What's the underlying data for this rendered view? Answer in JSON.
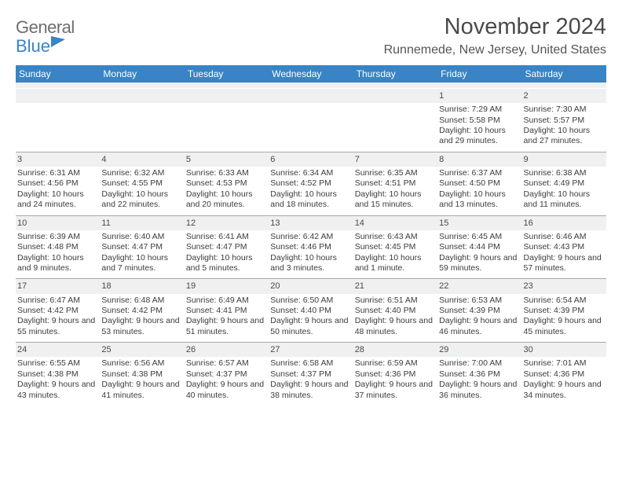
{
  "logo": {
    "line1": "General",
    "line2": "Blue"
  },
  "title": "November 2024",
  "location": "Runnemede, New Jersey, United States",
  "header_bg": "#3884c6",
  "band_bg": "#eef0f1",
  "days_of_week": [
    "Sunday",
    "Monday",
    "Tuesday",
    "Wednesday",
    "Thursday",
    "Friday",
    "Saturday"
  ],
  "weeks": [
    [
      {
        "num": "",
        "sr": "",
        "ss": "",
        "dl": ""
      },
      {
        "num": "",
        "sr": "",
        "ss": "",
        "dl": ""
      },
      {
        "num": "",
        "sr": "",
        "ss": "",
        "dl": ""
      },
      {
        "num": "",
        "sr": "",
        "ss": "",
        "dl": ""
      },
      {
        "num": "",
        "sr": "",
        "ss": "",
        "dl": ""
      },
      {
        "num": "1",
        "sr": "Sunrise: 7:29 AM",
        "ss": "Sunset: 5:58 PM",
        "dl": "Daylight: 10 hours and 29 minutes."
      },
      {
        "num": "2",
        "sr": "Sunrise: 7:30 AM",
        "ss": "Sunset: 5:57 PM",
        "dl": "Daylight: 10 hours and 27 minutes."
      }
    ],
    [
      {
        "num": "3",
        "sr": "Sunrise: 6:31 AM",
        "ss": "Sunset: 4:56 PM",
        "dl": "Daylight: 10 hours and 24 minutes."
      },
      {
        "num": "4",
        "sr": "Sunrise: 6:32 AM",
        "ss": "Sunset: 4:55 PM",
        "dl": "Daylight: 10 hours and 22 minutes."
      },
      {
        "num": "5",
        "sr": "Sunrise: 6:33 AM",
        "ss": "Sunset: 4:53 PM",
        "dl": "Daylight: 10 hours and 20 minutes."
      },
      {
        "num": "6",
        "sr": "Sunrise: 6:34 AM",
        "ss": "Sunset: 4:52 PM",
        "dl": "Daylight: 10 hours and 18 minutes."
      },
      {
        "num": "7",
        "sr": "Sunrise: 6:35 AM",
        "ss": "Sunset: 4:51 PM",
        "dl": "Daylight: 10 hours and 15 minutes."
      },
      {
        "num": "8",
        "sr": "Sunrise: 6:37 AM",
        "ss": "Sunset: 4:50 PM",
        "dl": "Daylight: 10 hours and 13 minutes."
      },
      {
        "num": "9",
        "sr": "Sunrise: 6:38 AM",
        "ss": "Sunset: 4:49 PM",
        "dl": "Daylight: 10 hours and 11 minutes."
      }
    ],
    [
      {
        "num": "10",
        "sr": "Sunrise: 6:39 AM",
        "ss": "Sunset: 4:48 PM",
        "dl": "Daylight: 10 hours and 9 minutes."
      },
      {
        "num": "11",
        "sr": "Sunrise: 6:40 AM",
        "ss": "Sunset: 4:47 PM",
        "dl": "Daylight: 10 hours and 7 minutes."
      },
      {
        "num": "12",
        "sr": "Sunrise: 6:41 AM",
        "ss": "Sunset: 4:47 PM",
        "dl": "Daylight: 10 hours and 5 minutes."
      },
      {
        "num": "13",
        "sr": "Sunrise: 6:42 AM",
        "ss": "Sunset: 4:46 PM",
        "dl": "Daylight: 10 hours and 3 minutes."
      },
      {
        "num": "14",
        "sr": "Sunrise: 6:43 AM",
        "ss": "Sunset: 4:45 PM",
        "dl": "Daylight: 10 hours and 1 minute."
      },
      {
        "num": "15",
        "sr": "Sunrise: 6:45 AM",
        "ss": "Sunset: 4:44 PM",
        "dl": "Daylight: 9 hours and 59 minutes."
      },
      {
        "num": "16",
        "sr": "Sunrise: 6:46 AM",
        "ss": "Sunset: 4:43 PM",
        "dl": "Daylight: 9 hours and 57 minutes."
      }
    ],
    [
      {
        "num": "17",
        "sr": "Sunrise: 6:47 AM",
        "ss": "Sunset: 4:42 PM",
        "dl": "Daylight: 9 hours and 55 minutes."
      },
      {
        "num": "18",
        "sr": "Sunrise: 6:48 AM",
        "ss": "Sunset: 4:42 PM",
        "dl": "Daylight: 9 hours and 53 minutes."
      },
      {
        "num": "19",
        "sr": "Sunrise: 6:49 AM",
        "ss": "Sunset: 4:41 PM",
        "dl": "Daylight: 9 hours and 51 minutes."
      },
      {
        "num": "20",
        "sr": "Sunrise: 6:50 AM",
        "ss": "Sunset: 4:40 PM",
        "dl": "Daylight: 9 hours and 50 minutes."
      },
      {
        "num": "21",
        "sr": "Sunrise: 6:51 AM",
        "ss": "Sunset: 4:40 PM",
        "dl": "Daylight: 9 hours and 48 minutes."
      },
      {
        "num": "22",
        "sr": "Sunrise: 6:53 AM",
        "ss": "Sunset: 4:39 PM",
        "dl": "Daylight: 9 hours and 46 minutes."
      },
      {
        "num": "23",
        "sr": "Sunrise: 6:54 AM",
        "ss": "Sunset: 4:39 PM",
        "dl": "Daylight: 9 hours and 45 minutes."
      }
    ],
    [
      {
        "num": "24",
        "sr": "Sunrise: 6:55 AM",
        "ss": "Sunset: 4:38 PM",
        "dl": "Daylight: 9 hours and 43 minutes."
      },
      {
        "num": "25",
        "sr": "Sunrise: 6:56 AM",
        "ss": "Sunset: 4:38 PM",
        "dl": "Daylight: 9 hours and 41 minutes."
      },
      {
        "num": "26",
        "sr": "Sunrise: 6:57 AM",
        "ss": "Sunset: 4:37 PM",
        "dl": "Daylight: 9 hours and 40 minutes."
      },
      {
        "num": "27",
        "sr": "Sunrise: 6:58 AM",
        "ss": "Sunset: 4:37 PM",
        "dl": "Daylight: 9 hours and 38 minutes."
      },
      {
        "num": "28",
        "sr": "Sunrise: 6:59 AM",
        "ss": "Sunset: 4:36 PM",
        "dl": "Daylight: 9 hours and 37 minutes."
      },
      {
        "num": "29",
        "sr": "Sunrise: 7:00 AM",
        "ss": "Sunset: 4:36 PM",
        "dl": "Daylight: 9 hours and 36 minutes."
      },
      {
        "num": "30",
        "sr": "Sunrise: 7:01 AM",
        "ss": "Sunset: 4:36 PM",
        "dl": "Daylight: 9 hours and 34 minutes."
      }
    ]
  ]
}
